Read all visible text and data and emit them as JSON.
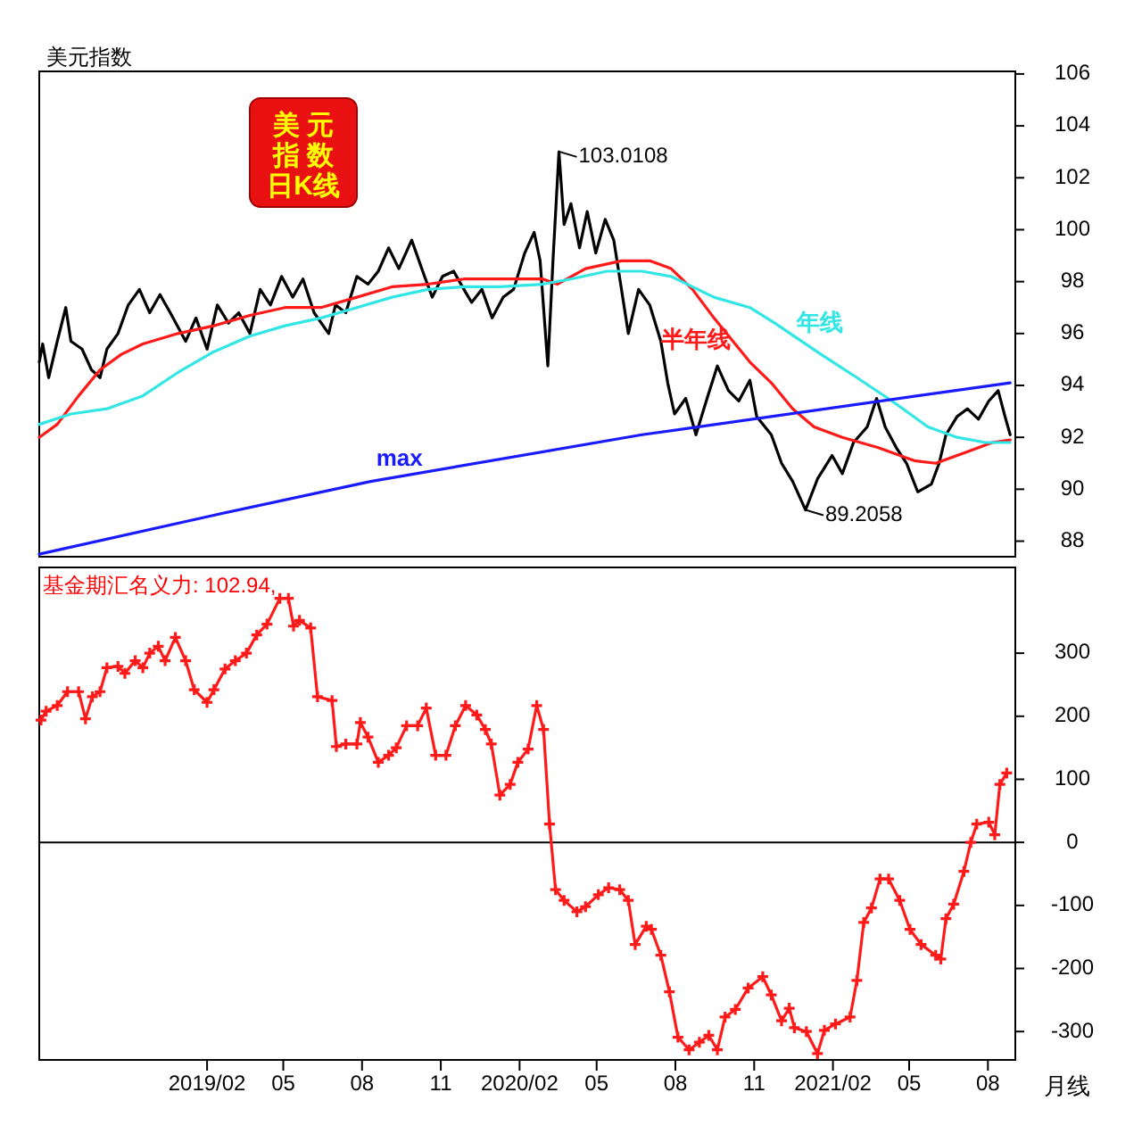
{
  "chart_data": [
    {
      "type": "line",
      "title": "美元指数",
      "annotations": [
        "美 元",
        "指 数",
        "日K线",
        {
          "text": "103.0108",
          "x": "2020-03-18",
          "y": 103.0108
        },
        {
          "text": "89.2058",
          "x": "2020-12-31",
          "y": 89.2058
        }
      ],
      "xlim": [
        "2018-07-20",
        "2021-09-02"
      ],
      "ylim": [
        87.4,
        106.1
      ],
      "yticks": [
        88,
        90,
        92,
        94,
        96,
        98,
        100,
        102,
        104,
        106
      ],
      "tick_labels": "y",
      "series": [
        {
          "color": "#000000",
          "x": [
            "2018-07-20",
            "2018-07-24",
            "2018-07-31",
            "2018-08-10",
            "2018-08-20",
            "2018-08-26",
            "2018-09-08",
            "2018-09-19",
            "2018-09-29",
            "2018-10-07",
            "2018-10-20",
            "2018-11-01",
            "2018-11-14",
            "2018-11-26",
            "2018-12-08",
            "2018-12-20",
            "2019-01-07",
            "2019-01-19",
            "2019-02-01",
            "2019-02-13",
            "2019-02-26",
            "2019-03-10",
            "2019-03-23",
            "2019-04-04",
            "2019-04-16",
            "2019-04-29",
            "2019-05-12",
            "2019-05-24",
            "2019-06-06",
            "2019-06-23",
            "2019-07-01",
            "2019-07-13",
            "2019-07-26",
            "2019-08-08",
            "2019-08-20",
            "2019-09-01",
            "2019-09-13",
            "2019-09-28",
            "2019-10-13",
            "2019-10-22",
            "2019-11-03",
            "2019-11-16",
            "2019-11-28",
            "2019-12-07",
            "2019-12-19",
            "2019-12-31",
            "2020-01-13",
            "2020-01-25",
            "2020-02-07",
            "2020-02-18",
            "2020-02-25",
            "2020-03-05",
            "2020-03-11",
            "2020-03-18",
            "2020-03-24",
            "2020-04-01",
            "2020-04-11",
            "2020-04-20",
            "2020-04-30",
            "2020-05-11",
            "2020-05-21",
            "2020-05-30",
            "2020-06-07",
            "2020-06-19",
            "2020-07-02",
            "2020-07-15",
            "2020-07-23",
            "2020-07-31",
            "2020-08-13",
            "2020-08-25",
            "2020-09-07",
            "2020-09-19",
            "2020-10-02",
            "2020-10-14",
            "2020-10-27",
            "2020-11-04",
            "2020-11-21",
            "2020-12-03",
            "2020-12-16",
            "2020-12-31",
            "2021-01-14",
            "2021-01-31",
            "2021-02-12",
            "2021-02-25",
            "2021-03-13",
            "2021-03-24",
            "2021-04-03",
            "2021-04-16",
            "2021-04-28",
            "2021-05-11",
            "2021-05-27",
            "2021-06-05",
            "2021-06-13",
            "2021-06-26",
            "2021-07-08",
            "2021-07-21",
            "2021-08-02",
            "2021-08-13",
            "2021-08-21",
            "2021-08-27"
          ],
          "values": [
            94.9,
            95.6,
            94.3,
            95.7,
            97.0,
            95.7,
            95.4,
            94.6,
            94.3,
            95.4,
            96.0,
            97.1,
            97.7,
            96.8,
            97.5,
            96.8,
            95.7,
            96.6,
            95.4,
            97.1,
            96.4,
            96.8,
            96.0,
            97.7,
            97.1,
            98.2,
            97.4,
            98.1,
            96.8,
            96.0,
            97.1,
            96.8,
            98.2,
            97.9,
            98.4,
            99.3,
            98.5,
            99.6,
            98.2,
            97.4,
            98.2,
            98.4,
            97.7,
            97.2,
            97.7,
            96.6,
            97.4,
            97.7,
            99.1,
            99.9,
            98.8,
            94.75,
            98.8,
            103.0,
            100.2,
            101.0,
            99.3,
            100.7,
            99.1,
            100.4,
            99.6,
            97.7,
            96.0,
            97.7,
            97.1,
            95.7,
            94.1,
            92.9,
            93.5,
            92.1,
            93.5,
            94.75,
            93.8,
            93.4,
            94.2,
            92.8,
            92.1,
            91.0,
            90.3,
            89.2,
            90.4,
            91.3,
            90.6,
            91.8,
            92.4,
            93.5,
            92.4,
            91.6,
            91.0,
            89.9,
            90.2,
            91.0,
            92.1,
            92.8,
            93.1,
            92.7,
            93.4,
            93.8,
            92.8,
            92.1
          ]
        },
        {
          "name": "半年线",
          "color": "#ff1a1a",
          "x": [
            "2018-07-20",
            "2018-08-10",
            "2018-09-04",
            "2018-09-29",
            "2018-10-24",
            "2018-11-18",
            "2018-12-29",
            "2019-02-09",
            "2019-03-23",
            "2019-05-03",
            "2019-06-14",
            "2019-07-26",
            "2019-09-05",
            "2019-10-17",
            "2019-11-28",
            "2020-01-09",
            "2020-02-28",
            "2020-03-16",
            "2020-04-18",
            "2020-05-30",
            "2020-07-02",
            "2020-07-27",
            "2020-08-21",
            "2020-09-15",
            "2020-10-27",
            "2020-11-21",
            "2020-12-16",
            "2021-01-10",
            "2021-02-12",
            "2021-03-26",
            "2021-05-07",
            "2021-06-01",
            "2021-07-04",
            "2021-08-06",
            "2021-08-27"
          ],
          "values": [
            92.0,
            92.5,
            93.6,
            94.6,
            95.2,
            95.6,
            96.0,
            96.3,
            96.7,
            97.0,
            97.0,
            97.4,
            97.8,
            97.9,
            98.1,
            98.1,
            98.1,
            97.9,
            98.5,
            98.8,
            98.8,
            98.5,
            97.7,
            96.6,
            94.9,
            94.1,
            93.1,
            92.4,
            92.0,
            91.6,
            91.1,
            91.0,
            91.4,
            91.8,
            91.9
          ]
        },
        {
          "name": "年线",
          "color": "#33e6e6",
          "x": [
            "2018-07-20",
            "2018-08-26",
            "2018-10-07",
            "2018-11-18",
            "2018-12-29",
            "2019-02-09",
            "2019-03-23",
            "2019-05-03",
            "2019-06-14",
            "2019-07-26",
            "2019-09-05",
            "2019-10-17",
            "2019-11-28",
            "2020-01-09",
            "2020-02-28",
            "2020-04-01",
            "2020-05-13",
            "2020-06-23",
            "2020-07-27",
            "2020-09-15",
            "2020-10-27",
            "2020-11-25",
            "2021-01-18",
            "2021-03-01",
            "2021-04-11",
            "2021-05-23",
            "2021-06-26",
            "2021-07-29",
            "2021-08-27"
          ],
          "values": [
            92.5,
            92.9,
            93.1,
            93.6,
            94.5,
            95.3,
            95.9,
            96.3,
            96.6,
            97.0,
            97.4,
            97.7,
            97.8,
            97.8,
            97.9,
            98.1,
            98.4,
            98.4,
            98.2,
            97.4,
            97.0,
            96.4,
            95.2,
            94.3,
            93.4,
            92.4,
            92.0,
            91.8,
            91.8
          ]
        },
        {
          "name": "max",
          "color": "#1a1aff",
          "x": [
            "2018-07-20",
            "2019-02-09",
            "2019-08-11",
            "2020-06-23",
            "2021-08-27"
          ],
          "values": [
            87.5,
            89.0,
            90.3,
            92.1,
            94.1
          ]
        }
      ]
    },
    {
      "type": "line",
      "title": "基金期汇名义力: 102.94,",
      "marker": "cross",
      "annotations": [
        "月线"
      ],
      "xlim": [
        "2018-07-20",
        "2021-09-02"
      ],
      "ylim": [
        -345,
        436
      ],
      "yticks": [
        -300,
        -200,
        -100,
        0,
        100,
        200,
        300
      ],
      "xticks": [
        {
          "value": "2019-02-01",
          "label": "2019/02"
        },
        {
          "value": "2019-05-01",
          "label": "05"
        },
        {
          "value": "2019-08-01",
          "label": "08"
        },
        {
          "value": "2019-11-01",
          "label": "11"
        },
        {
          "value": "2020-02-01",
          "label": "2020/02"
        },
        {
          "value": "2020-05-01",
          "label": "05"
        },
        {
          "value": "2020-08-01",
          "label": "08"
        },
        {
          "value": "2020-11-01",
          "label": "11"
        },
        {
          "value": "2021-02-01",
          "label": "2021/02"
        },
        {
          "value": "2021-05-01",
          "label": "05"
        },
        {
          "value": "2021-08-01",
          "label": "08"
        }
      ],
      "ref_lines": [
        {
          "axis": "y",
          "value": 0,
          "color": "#000000"
        }
      ],
      "series": [
        {
          "color": "#ff1a1a",
          "x": [
            "2018-07-22",
            "2018-07-28",
            "2018-08-10",
            "2018-08-22",
            "2018-09-04",
            "2018-09-12",
            "2018-09-20",
            "2018-09-29",
            "2018-10-07",
            "2018-10-20",
            "2018-10-28",
            "2018-11-09",
            "2018-11-18",
            "2018-11-26",
            "2018-12-06",
            "2018-12-14",
            "2018-12-26",
            "2019-01-07",
            "2019-01-17",
            "2019-02-01",
            "2019-02-09",
            "2019-02-22",
            "2019-03-06",
            "2019-03-19",
            "2019-03-31",
            "2019-04-12",
            "2019-04-27",
            "2019-05-07",
            "2019-05-13",
            "2019-05-20",
            "2019-06-02",
            "2019-06-10",
            "2019-06-27",
            "2019-07-02",
            "2019-07-13",
            "2019-07-26",
            "2019-07-30",
            "2019-08-08",
            "2019-08-20",
            "2019-09-01",
            "2019-09-10",
            "2019-09-22",
            "2019-10-05",
            "2019-10-15",
            "2019-10-26",
            "2019-11-07",
            "2019-11-18",
            "2019-11-30",
            "2019-12-13",
            "2019-12-23",
            "2019-12-30",
            "2020-01-09",
            "2020-01-21",
            "2020-01-30",
            "2020-02-11",
            "2020-02-21",
            "2020-02-29",
            "2020-03-07",
            "2020-03-14",
            "2020-03-24",
            "2020-04-08",
            "2020-04-18",
            "2020-05-03",
            "2020-05-15",
            "2020-05-28",
            "2020-06-07",
            "2020-06-15",
            "2020-06-28",
            "2020-07-04",
            "2020-07-15",
            "2020-07-25",
            "2020-08-04",
            "2020-08-17",
            "2020-08-29",
            "2020-09-09",
            "2020-09-19",
            "2020-09-28",
            "2020-10-10",
            "2020-10-25",
            "2020-11-11",
            "2020-11-21",
            "2020-12-03",
            "2020-12-12",
            "2020-12-18",
            "2021-01-01",
            "2021-01-14",
            "2021-01-22",
            "2021-02-04",
            "2021-02-21",
            "2021-03-01",
            "2021-03-09",
            "2021-03-18",
            "2021-03-28",
            "2021-04-07",
            "2021-04-20",
            "2021-05-02",
            "2021-05-15",
            "2021-06-01",
            "2021-06-07",
            "2021-06-13",
            "2021-06-22",
            "2021-07-04",
            "2021-07-12",
            "2021-07-19",
            "2021-08-02",
            "2021-08-09",
            "2021-08-15",
            "2021-08-23"
          ],
          "values": [
            194,
            208,
            217,
            239,
            239,
            196,
            231,
            239,
            277,
            279,
            268,
            288,
            277,
            300,
            311,
            288,
            325,
            288,
            242,
            222,
            242,
            275,
            288,
            300,
            329,
            346,
            387,
            387,
            343,
            352,
            340,
            231,
            225,
            152,
            156,
            156,
            190,
            167,
            127,
            138,
            150,
            185,
            185,
            213,
            138,
            138,
            185,
            217,
            202,
            179,
            156,
            75,
            92,
            127,
            148,
            217,
            179,
            29,
            -75,
            -92,
            -110,
            -102,
            -83,
            -72,
            -75,
            -92,
            -162,
            -133,
            -138,
            -179,
            -237,
            -309,
            -329,
            -317,
            -306,
            -329,
            -277,
            -265,
            -231,
            -213,
            -242,
            -283,
            -263,
            -294,
            -300,
            -335,
            -298,
            -288,
            -277,
            -219,
            -127,
            -104,
            -58,
            -58,
            -92,
            -138,
            -162,
            -179,
            -185,
            -121,
            -98,
            -46,
            0,
            29,
            32,
            12,
            92,
            110
          ]
        }
      ]
    }
  ]
}
